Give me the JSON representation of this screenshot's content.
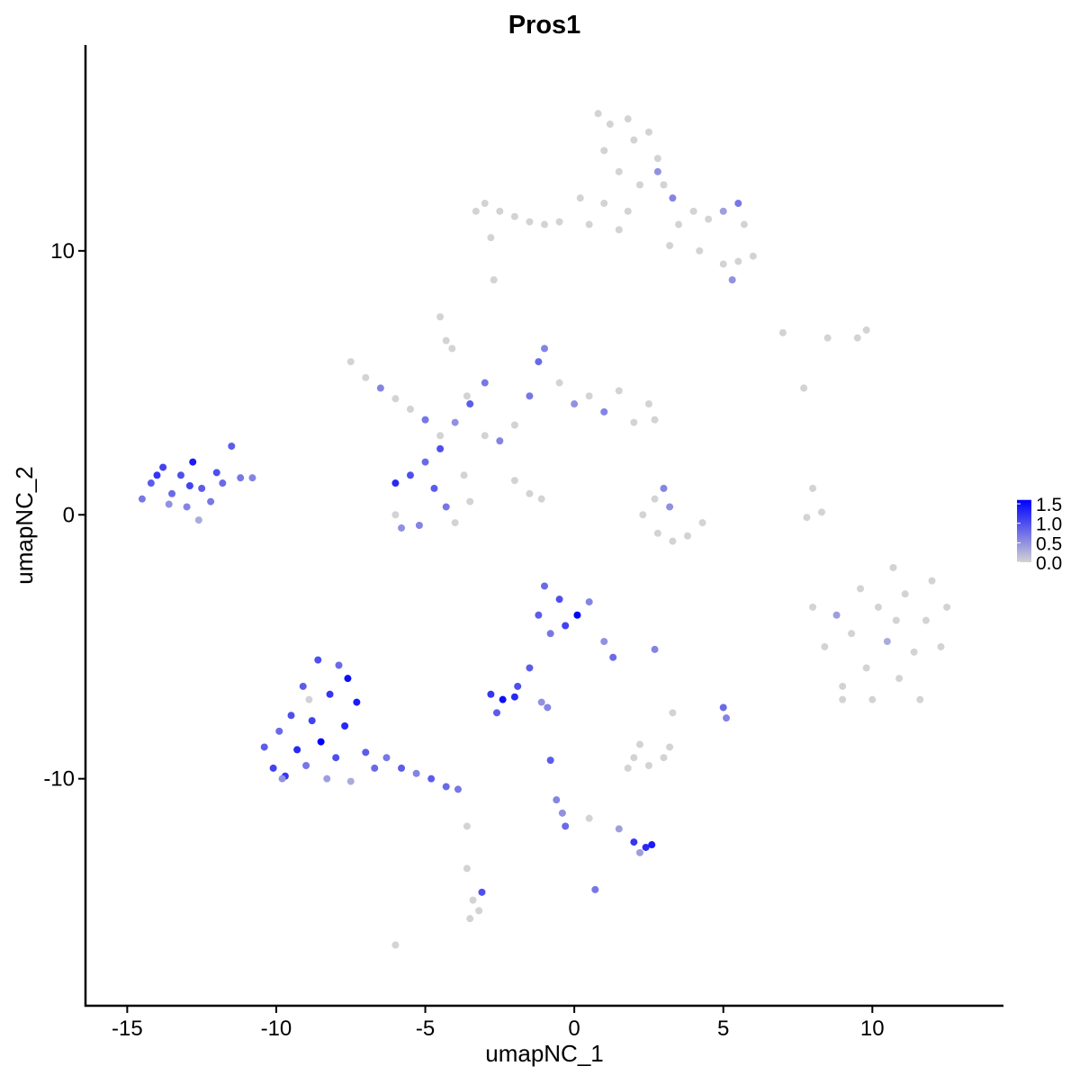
{
  "chart_data": {
    "type": "scatter",
    "title": "Pros1",
    "x_label": "umapNC_1",
    "y_label": "umapNC_2",
    "xlim": [
      -16.4,
      14.4
    ],
    "ylim": [
      -18.6,
      17.8
    ],
    "xticks": [
      -15,
      -10,
      -5,
      0,
      5,
      10
    ],
    "yticks": [
      -10,
      0,
      10
    ],
    "grid": false,
    "color_low": "#d3d3d3",
    "color_high": "#0000ff",
    "clim": [
      0,
      1.6
    ],
    "cticks": [
      {
        "value": 0,
        "label": "0.0"
      },
      0.5,
      {
        "value": 1,
        "label": "1.0"
      },
      1.5
    ],
    "x": [
      -14.5,
      -14.2,
      -13.8,
      -13.5,
      -13.2,
      -13.0,
      -12.8,
      -12.5,
      -12.2,
      -12.0,
      -11.8,
      -11.5,
      -11.2,
      -10.8,
      -13.6,
      -12.6,
      -14.0,
      -12.9,
      -10.4,
      -10.1,
      -9.9,
      -9.7,
      -9.5,
      -9.3,
      -9.1,
      -9.0,
      -8.8,
      -8.6,
      -8.5,
      -8.3,
      -8.2,
      -8.0,
      -7.9,
      -7.7,
      -7.5,
      -7.3,
      -7.0,
      -6.7,
      -6.3,
      -5.8,
      -5.3,
      -4.8,
      -4.3,
      -3.9,
      -9.8,
      -8.9,
      -7.6,
      -7.5,
      -7.0,
      -6.5,
      -6.0,
      -5.5,
      -5.0,
      -4.5,
      -4.0,
      -3.5,
      -3.0,
      -2.5,
      -2.0,
      -1.5,
      -1.2,
      -1.0,
      -0.5,
      0,
      0.5,
      1.0,
      1.5,
      2.0,
      2.5,
      2.7,
      -2.0,
      -1.5,
      -1.1,
      -6.0,
      -5.5,
      -5.0,
      -4.7,
      -4.3,
      -4.0,
      -5.2,
      -6.0,
      -5.8,
      -4.5,
      -3.7,
      -3.5,
      -4.3,
      -4.1,
      -4.5,
      -3.6,
      -3.0,
      -3.3,
      -3.0,
      -2.5,
      -2.0,
      -1.5,
      -1.0,
      -0.5,
      0.5,
      -2.8,
      -2.7,
      0.8,
      1.2,
      1.8,
      2.0,
      1.0,
      1.5,
      2.5,
      2.8,
      2.2,
      1.8,
      1.0,
      1.5,
      3.0,
      3.3,
      3.5,
      4.0,
      4.5,
      5.0,
      5.5,
      5.7,
      3.2,
      4.2,
      5.0,
      5.3,
      5.5,
      6.0,
      2.8,
      0.2,
      8.0,
      8.4,
      8.8,
      9.0,
      9.3,
      9.6,
      9.8,
      10.0,
      10.2,
      10.5,
      10.7,
      10.9,
      11.1,
      11.4,
      11.6,
      11.8,
      12.0,
      12.3,
      12.5,
      9.0,
      10.8,
      2.3,
      2.8,
      3.3,
      3.8,
      4.3,
      3.0,
      3.2,
      2.7,
      8.0,
      8.3,
      7.8,
      7.0,
      8.5,
      9.5,
      9.8,
      7.7,
      -1.0,
      -0.5,
      -1.2,
      -0.3,
      0.1,
      0.5,
      -0.8,
      1.0,
      1.3,
      -1.5,
      -1.9,
      -2.8,
      -2.4,
      -2.0,
      -2.6,
      -1.1,
      -0.9,
      2.7,
      5.0,
      5.1,
      3.3,
      2.0,
      2.5,
      1.8,
      2.2,
      3.0,
      3.2,
      -0.8,
      -0.6,
      -0.4,
      -0.3,
      0.5,
      1.5,
      2.0,
      2.4,
      2.6,
      2.2,
      0.7,
      -3.6,
      -3.6,
      -3.4,
      -3.2,
      -3.5,
      -3.1,
      -6.0
    ],
    "y": [
      0.6,
      1.2,
      1.8,
      0.8,
      1.5,
      0.3,
      2.0,
      1.0,
      0.5,
      1.6,
      1.2,
      2.6,
      1.4,
      1.4,
      0.4,
      -0.2,
      1.5,
      1.1,
      -8.8,
      -9.6,
      -8.2,
      -9.9,
      -7.6,
      -8.9,
      -6.5,
      -9.5,
      -7.8,
      -5.5,
      -8.6,
      -10.0,
      -6.8,
      -9.2,
      -5.7,
      -8.0,
      -10.1,
      -7.1,
      -9.0,
      -9.6,
      -9.2,
      -9.6,
      -9.8,
      -10.0,
      -10.3,
      -10.4,
      -10.0,
      -7.0,
      -6.2,
      5.8,
      5.2,
      4.8,
      4.4,
      4.0,
      3.6,
      3.0,
      3.5,
      4.2,
      3.0,
      2.8,
      3.4,
      4.5,
      5.8,
      6.3,
      5.0,
      4.2,
      4.5,
      3.9,
      4.7,
      3.5,
      4.2,
      3.6,
      1.3,
      0.8,
      0.6,
      1.2,
      1.5,
      2.0,
      1.0,
      0.3,
      -0.3,
      -0.4,
      0.0,
      -0.5,
      2.5,
      1.5,
      0.5,
      6.6,
      6.3,
      7.5,
      4.5,
      5.0,
      11.5,
      11.8,
      11.5,
      11.3,
      11.1,
      11.0,
      11.1,
      11.0,
      10.5,
      8.9,
      15.2,
      14.8,
      15.0,
      14.2,
      13.8,
      13.0,
      14.5,
      13.5,
      12.5,
      11.5,
      11.8,
      10.8,
      12.5,
      12.0,
      11.0,
      11.5,
      11.2,
      11.5,
      11.8,
      11.0,
      10.2,
      10.0,
      9.5,
      8.9,
      9.6,
      9.8,
      13.0,
      12.0,
      -3.5,
      -5.0,
      -3.8,
      -6.5,
      -4.5,
      -2.8,
      -5.8,
      -7.0,
      -3.5,
      -4.8,
      -2.0,
      -6.2,
      -3.0,
      -5.2,
      -7.0,
      -4.0,
      -2.5,
      -5.0,
      -3.5,
      -7.0,
      -4.0,
      0.0,
      -0.7,
      -1.0,
      -0.8,
      -0.3,
      1.0,
      0.3,
      0.6,
      1.0,
      0.1,
      -0.1,
      6.9,
      6.7,
      6.7,
      7.0,
      4.8,
      -2.7,
      -3.2,
      -3.8,
      -4.2,
      -3.8,
      -3.3,
      -4.5,
      -4.8,
      -5.4,
      -5.8,
      -6.5,
      -6.8,
      -7.0,
      -6.9,
      -7.5,
      -7.1,
      -7.3,
      -5.1,
      -7.3,
      -7.7,
      -7.5,
      -9.2,
      -9.5,
      -9.6,
      -8.7,
      -9.2,
      -8.8,
      -9.3,
      -10.8,
      -11.3,
      -11.8,
      -11.5,
      -11.9,
      -12.4,
      -12.6,
      -12.5,
      -12.8,
      -14.2,
      -11.8,
      -13.4,
      -14.6,
      -15.0,
      -15.3,
      -14.3,
      -16.3
    ],
    "values": [
      0.7,
      0.9,
      1.1,
      0.8,
      1.0,
      0.6,
      1.4,
      0.9,
      0.7,
      1.0,
      0.8,
      0.9,
      0.7,
      0.6,
      0.5,
      0.3,
      1.2,
      1.1,
      0.9,
      1.1,
      0.8,
      1.2,
      1.0,
      1.3,
      0.9,
      0.7,
      1.1,
      1.0,
      1.6,
      0.4,
      1.2,
      1.0,
      0.8,
      1.3,
      0.3,
      1.4,
      0.9,
      0.8,
      0.7,
      0.9,
      0.6,
      0.9,
      0.8,
      0.7,
      0.5,
      0,
      1.5,
      0,
      0,
      0.6,
      0,
      0,
      0.7,
      0,
      0.5,
      0.9,
      0,
      0.6,
      0,
      0.7,
      0.8,
      0.6,
      0,
      0.5,
      0,
      0.6,
      0,
      0,
      0,
      0,
      0,
      0,
      0,
      1.3,
      1.0,
      0.8,
      0.9,
      0.7,
      0,
      0.6,
      0,
      0.5,
      1.0,
      0,
      0,
      0,
      0,
      0,
      0,
      0.7,
      0,
      0,
      0,
      0,
      0,
      0,
      0,
      0,
      0,
      0,
      0,
      0,
      0,
      0,
      0,
      0,
      0,
      0,
      0,
      0,
      0,
      0,
      0,
      0.6,
      0,
      0,
      0,
      0.4,
      0.7,
      0,
      0,
      0,
      0,
      0.5,
      0,
      0,
      0.5,
      0,
      0,
      0,
      0.4,
      0,
      0,
      0,
      0,
      0,
      0,
      0.3,
      0,
      0,
      0,
      0,
      0,
      0,
      0,
      0,
      0,
      0,
      0,
      0,
      0,
      0,
      0,
      0,
      0.6,
      0.5,
      0,
      0,
      0,
      0,
      0,
      0,
      0,
      0,
      0,
      0.8,
      1.0,
      0.9,
      1.1,
      1.6,
      0.6,
      0.7,
      0.5,
      0.8,
      0.9,
      1.0,
      1.2,
      1.5,
      1.3,
      0.9,
      0.5,
      0.6,
      0.6,
      0.8,
      0.6,
      0,
      0,
      0,
      0,
      0,
      0,
      0,
      0.9,
      0.6,
      0.5,
      0.8,
      0,
      0.4,
      1.2,
      1.3,
      1.4,
      0.4,
      0.7,
      0,
      0,
      0,
      0,
      0,
      1.0,
      0
    ]
  }
}
